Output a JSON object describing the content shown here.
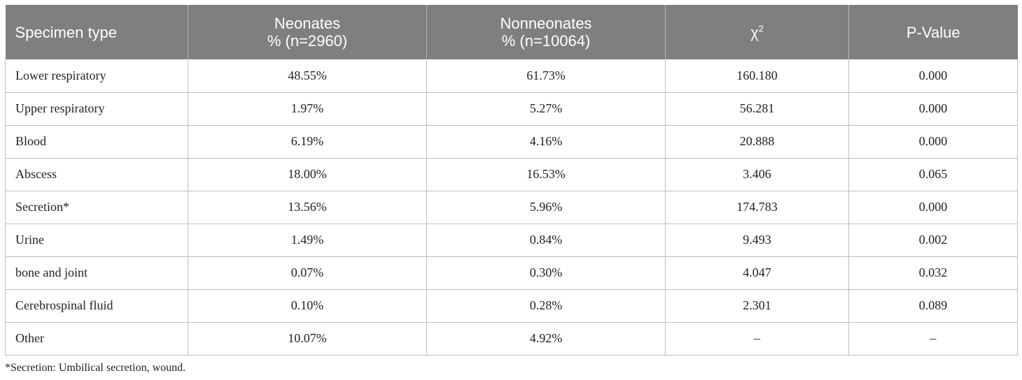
{
  "table": {
    "headers": [
      {
        "line1": "Specimen type",
        "line2": ""
      },
      {
        "line1": "Neonates",
        "line2": "% (n=2960)"
      },
      {
        "line1": "Nonneonates",
        "line2": "% (n=10064)"
      },
      {
        "line1": "χ",
        "sup": "2"
      },
      {
        "line1": "P-Value",
        "line2": ""
      }
    ],
    "rows": [
      [
        "Lower respiratory",
        "48.55%",
        "61.73%",
        "160.180",
        "0.000"
      ],
      [
        "Upper respiratory",
        "1.97%",
        "5.27%",
        "56.281",
        "0.000"
      ],
      [
        "Blood",
        "6.19%",
        "4.16%",
        "20.888",
        "0.000"
      ],
      [
        "Abscess",
        "18.00%",
        "16.53%",
        "3.406",
        "0.065"
      ],
      [
        "Secretion*",
        "13.56%",
        "5.96%",
        "174.783",
        "0.000"
      ],
      [
        "Urine",
        "1.49%",
        "0.84%",
        "9.493",
        "0.002"
      ],
      [
        "bone and joint",
        "0.07%",
        "0.30%",
        "4.047",
        "0.032"
      ],
      [
        "Cerebrospinal fluid",
        "0.10%",
        "0.28%",
        "2.301",
        "0.089"
      ],
      [
        "Other",
        "10.07%",
        "4.92%",
        "–",
        "–"
      ]
    ]
  },
  "footnote": "*Secretion: Umbilical secretion, wound.",
  "colors": {
    "header_bg": "#7f7f7f",
    "header_text": "#ffffff",
    "grid": "#bdbdbd"
  }
}
